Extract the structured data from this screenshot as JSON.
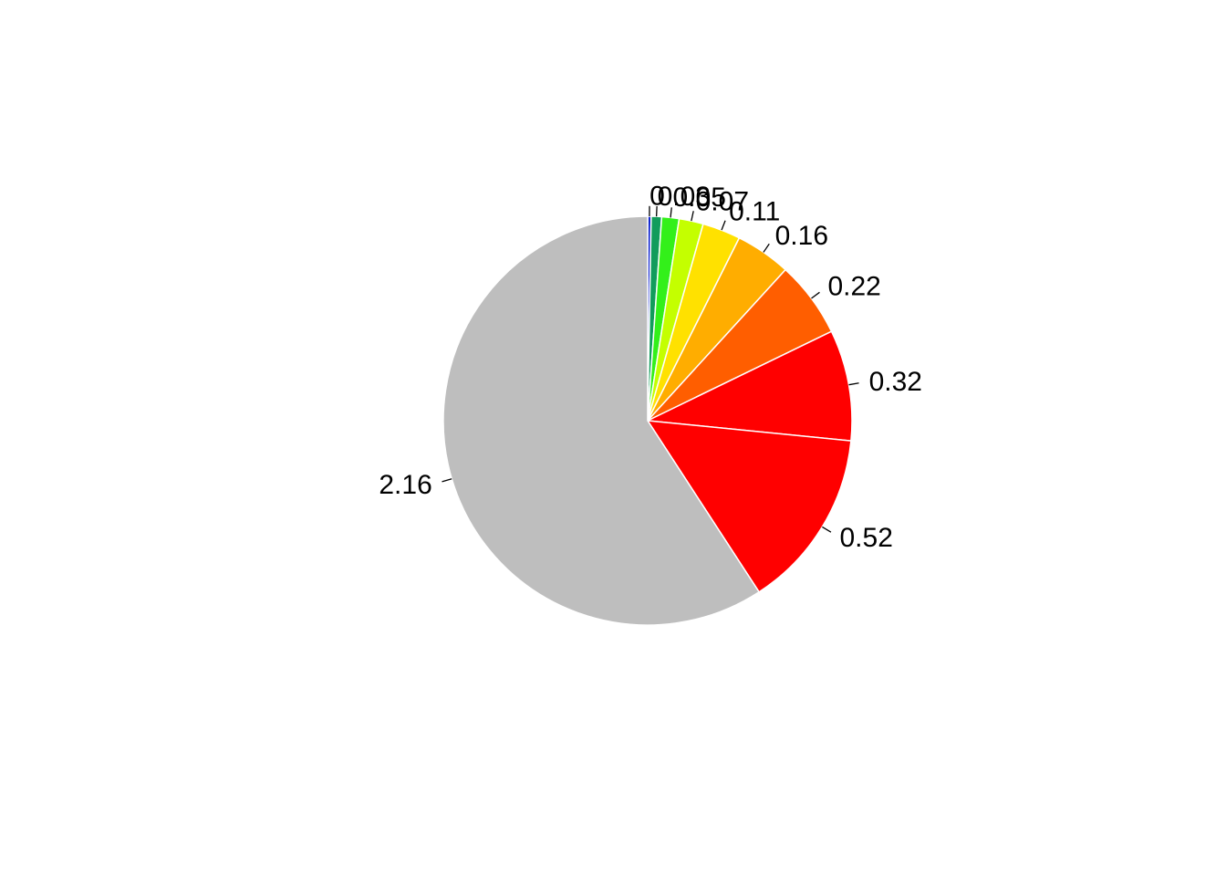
{
  "chart_data": {
    "type": "pie",
    "values": [
      0.01,
      0.03,
      0.05,
      0.07,
      0.11,
      0.16,
      0.22,
      0.32,
      0.52,
      2.16
    ],
    "labels": [
      "0",
      "0.03",
      "0.05",
      "0.07",
      "0.11",
      "0.16",
      "0.22",
      "0.32",
      "0.52",
      "2.16"
    ],
    "colors": [
      "#0b1fcc",
      "#10a060",
      "#33ee11",
      "#c2ff00",
      "#ffe000",
      "#ffad00",
      "#ff5f00",
      "#ff0000",
      "#bebebe",
      "#bebebe"
    ],
    "slice_colors": [
      "#1025d0",
      "#119c5c",
      "#33f01a",
      "#c4ff00",
      "#ffe100",
      "#ffad00",
      "#ff5e00",
      "#ff0000",
      "#bebebe"
    ],
    "start_angle_deg": 90,
    "direction": "clockwise",
    "border_color": "#ffffff"
  }
}
